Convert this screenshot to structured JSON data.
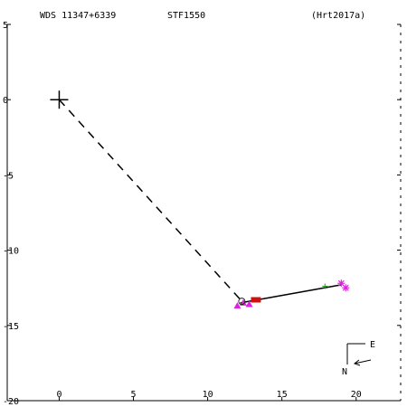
{
  "header": {
    "wds_id": "WDS 11347+6339",
    "discoverer": "STF1550",
    "reference": "(Hrt2017a)"
  },
  "compass": {
    "east_label": "E",
    "north_label": "N"
  },
  "colors": {
    "axes": "#000000",
    "orbit_line": "#000000",
    "dashed_line": "#000000",
    "primary_marker": "#000000",
    "obs_magenta": "#e020e0",
    "obs_green": "#20a020",
    "obs_red": "#d01010",
    "obs_dark": "#202020"
  },
  "chart_data": {
    "type": "scatter",
    "title": "",
    "xlabel": "",
    "ylabel": "",
    "xlim": [
      -3.5,
      23
    ],
    "ylim": [
      -20,
      5
    ],
    "x_ticks": [
      0,
      5,
      10,
      15,
      20
    ],
    "y_ticks": [
      5,
      0,
      -5,
      -10,
      -15,
      -20
    ],
    "x_tick_labels": [
      "0",
      "5",
      "10",
      "15",
      "20"
    ],
    "y_tick_labels": [
      "5",
      "0",
      "-5",
      "-10",
      "-15",
      "-20"
    ],
    "primary": {
      "x": 0,
      "y": 0,
      "marker": "plus"
    },
    "connector": {
      "style": "dashed",
      "from": [
        0,
        0
      ],
      "to": [
        12.4,
        -13.5
      ]
    },
    "motion_line": {
      "style": "solid",
      "points": [
        [
          12.2,
          -13.5
        ],
        [
          19.0,
          -12.3
        ]
      ]
    },
    "observations": [
      {
        "x": 12.0,
        "y": -13.7,
        "marker": "triangle",
        "color": "obs_magenta"
      },
      {
        "x": 12.4,
        "y": -13.5,
        "marker": "triangle",
        "color": "obs_magenta"
      },
      {
        "x": 12.8,
        "y": -13.6,
        "marker": "triangle",
        "color": "obs_magenta"
      },
      {
        "x": 12.3,
        "y": -13.4,
        "marker": "circle",
        "color": "obs_dark"
      },
      {
        "x": 13.4,
        "y": -13.3,
        "marker": "square",
        "color": "obs_red"
      },
      {
        "x": 13.1,
        "y": -13.3,
        "marker": "square",
        "color": "obs_red"
      },
      {
        "x": 17.9,
        "y": -12.4,
        "marker": "plus",
        "color": "obs_green"
      },
      {
        "x": 19.0,
        "y": -12.2,
        "marker": "star",
        "color": "obs_magenta"
      },
      {
        "x": 19.3,
        "y": -12.5,
        "marker": "star",
        "color": "obs_magenta"
      }
    ]
  }
}
